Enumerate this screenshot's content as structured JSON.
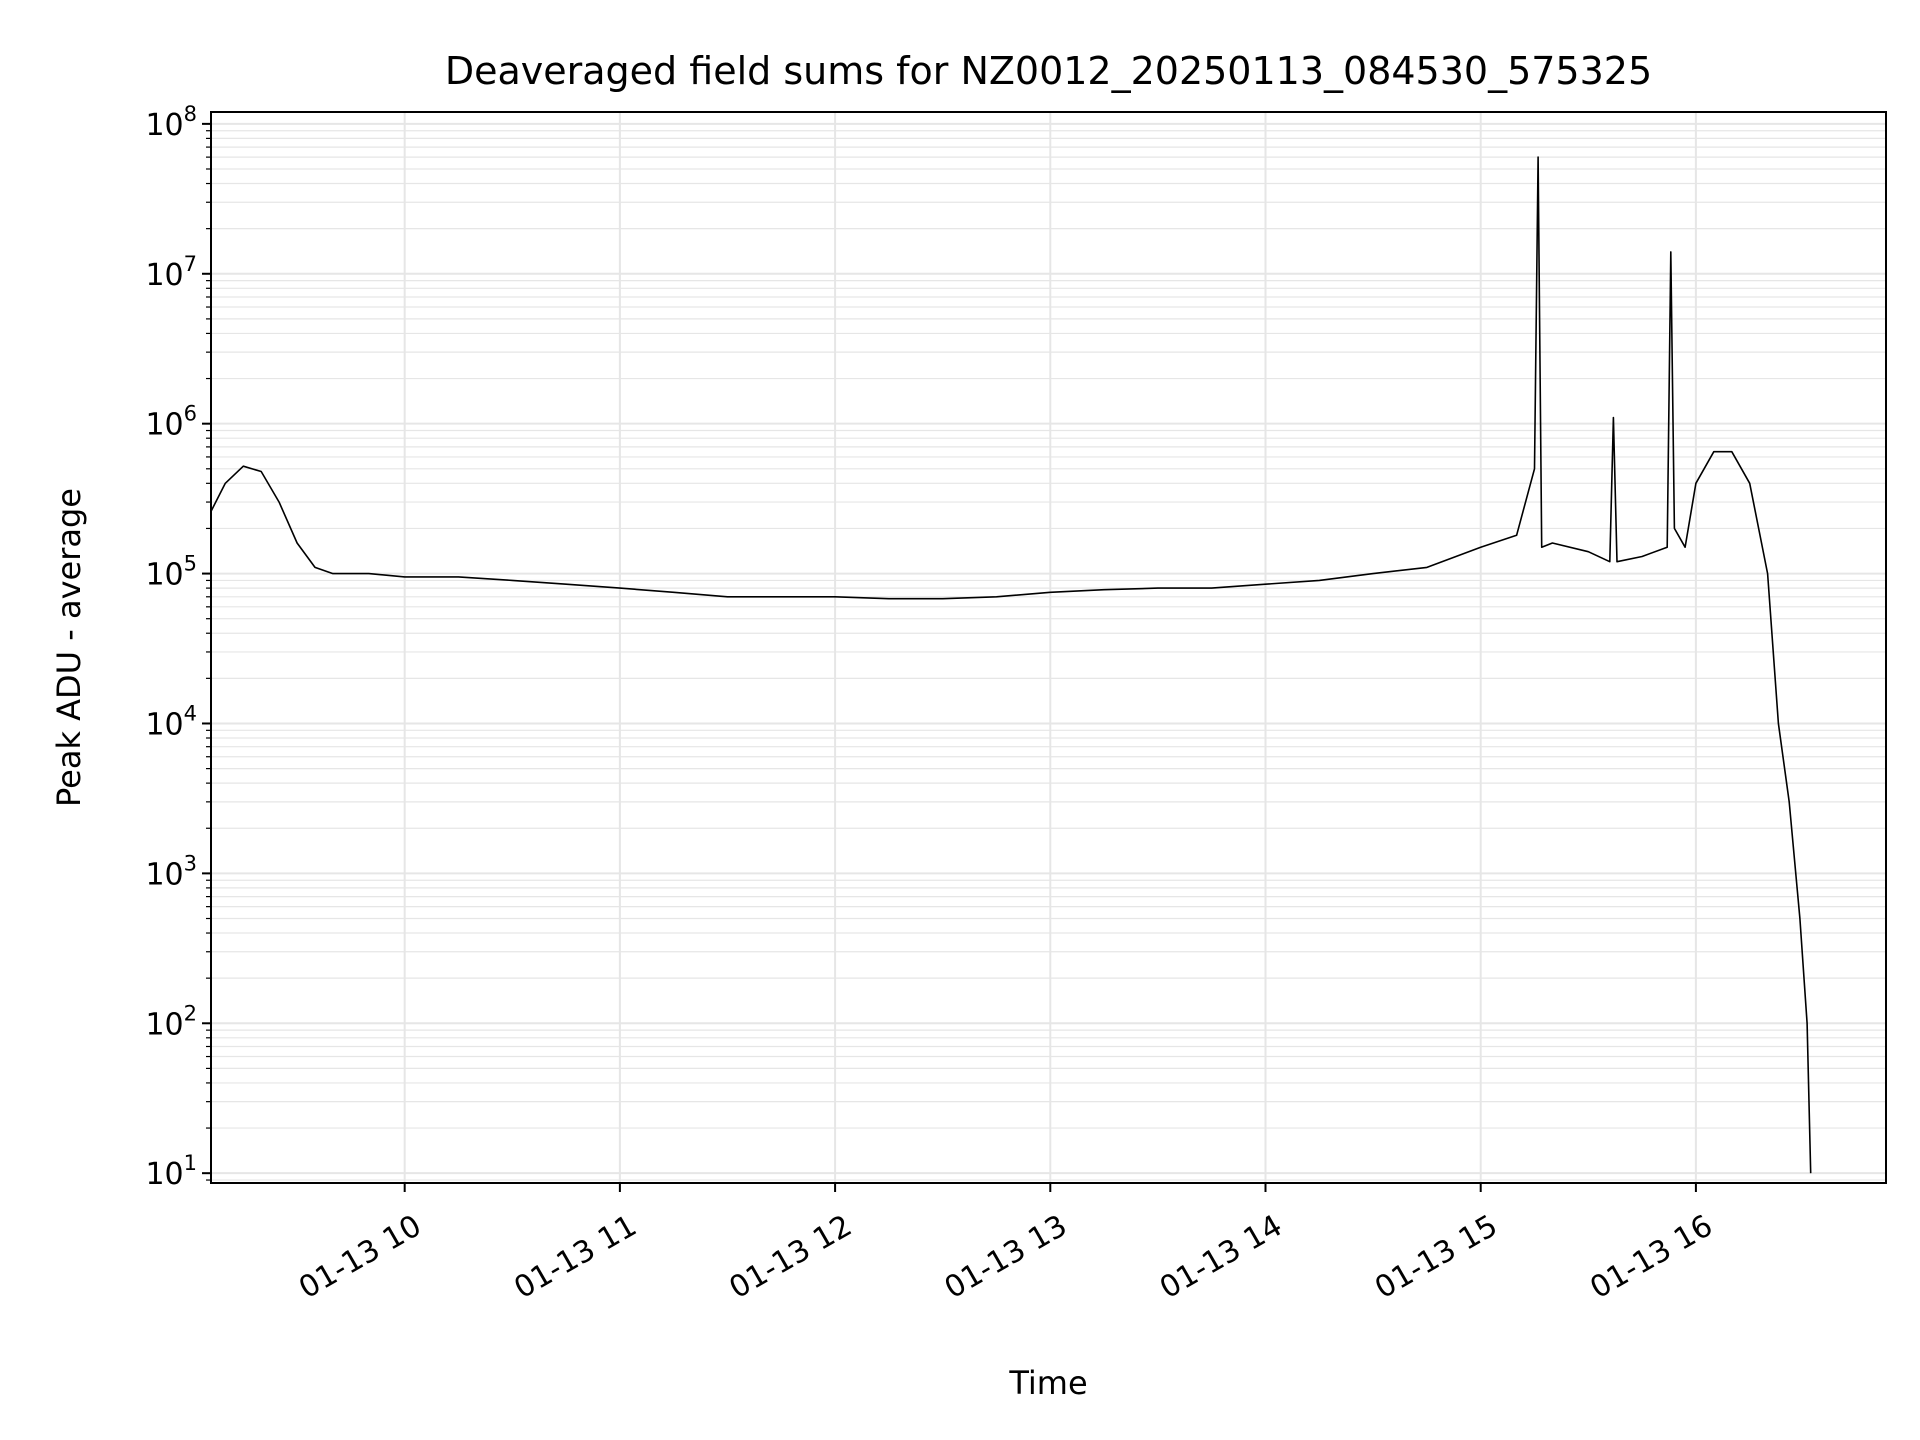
{
  "chart_data": {
    "type": "line",
    "title": "Deaveraged field sums for NZ0012_20250113_084530_575325",
    "xlabel": "Time",
    "ylabel": "Peak ADU - average",
    "yscale": "log",
    "ylim": [
      8.6,
      120000000
    ],
    "xlim": [
      "01-13 09:06",
      "01-13 16:53"
    ],
    "grid": true,
    "line_color": "#000000",
    "grid_color": "#e6e6e6",
    "x_ticks": [
      {
        "value": "01-13 10:00",
        "label": "01-13 10"
      },
      {
        "value": "01-13 11:00",
        "label": "01-13 11"
      },
      {
        "value": "01-13 12:00",
        "label": "01-13 12"
      },
      {
        "value": "01-13 13:00",
        "label": "01-13 13"
      },
      {
        "value": "01-13 14:00",
        "label": "01-13 14"
      },
      {
        "value": "01-13 15:00",
        "label": "01-13 15"
      },
      {
        "value": "01-13 16:00",
        "label": "01-13 16"
      }
    ],
    "y_ticks": [
      {
        "value": 10,
        "base": "10",
        "exp": "1"
      },
      {
        "value": 100,
        "base": "10",
        "exp": "2"
      },
      {
        "value": 1000,
        "base": "10",
        "exp": "3"
      },
      {
        "value": 10000,
        "base": "10",
        "exp": "4"
      },
      {
        "value": 100000,
        "base": "10",
        "exp": "5"
      },
      {
        "value": 1000000,
        "base": "10",
        "exp": "6"
      },
      {
        "value": 10000000,
        "base": "10",
        "exp": "7"
      },
      {
        "value": 100000000,
        "base": "10",
        "exp": "8"
      }
    ],
    "series": [
      {
        "x": [
          "01-13 09:06",
          "01-13 09:10",
          "01-13 09:15",
          "01-13 09:20",
          "01-13 09:25",
          "01-13 09:30",
          "01-13 09:35",
          "01-13 09:40",
          "01-13 09:50",
          "01-13 10:00",
          "01-13 10:15",
          "01-13 10:30",
          "01-13 10:45",
          "01-13 11:00",
          "01-13 11:15",
          "01-13 11:30",
          "01-13 11:45",
          "01-13 12:00",
          "01-13 12:15",
          "01-13 12:30",
          "01-13 12:45",
          "01-13 13:00",
          "01-13 13:15",
          "01-13 13:30",
          "01-13 13:45",
          "01-13 14:00",
          "01-13 14:15",
          "01-13 14:30",
          "01-13 14:45",
          "01-13 15:00",
          "01-13 15:10",
          "01-13 15:15",
          "01-13 15:16",
          "01-13 15:17",
          "01-13 15:20",
          "01-13 15:30",
          "01-13 15:36",
          "01-13 15:37",
          "01-13 15:38",
          "01-13 15:45",
          "01-13 15:52",
          "01-13 15:53",
          "01-13 15:54",
          "01-13 15:57",
          "01-13 16:00",
          "01-13 16:05",
          "01-13 16:10",
          "01-13 16:15",
          "01-13 16:20",
          "01-13 16:23",
          "01-13 16:26",
          "01-13 16:29",
          "01-13 16:31",
          "01-13 16:32"
        ],
        "values": [
          260000,
          400000,
          520000,
          480000,
          300000,
          160000,
          110000,
          100000,
          100000,
          95000,
          95000,
          90000,
          85000,
          80000,
          75000,
          70000,
          70000,
          70000,
          68000,
          68000,
          70000,
          75000,
          78000,
          80000,
          80000,
          85000,
          90000,
          100000,
          110000,
          150000,
          180000,
          500000,
          60000000,
          150000,
          160000,
          140000,
          120000,
          1100000,
          120000,
          130000,
          150000,
          14000000,
          200000,
          150000,
          400000,
          650000,
          650000,
          400000,
          100000,
          10000,
          3000,
          500,
          100,
          10
        ]
      }
    ]
  }
}
